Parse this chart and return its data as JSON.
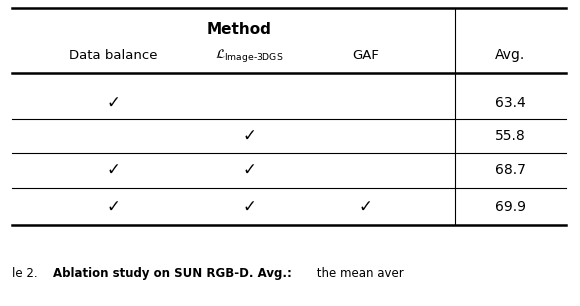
{
  "title": "Method",
  "col_headers": [
    "Data balance",
    "$\\mathcal{L}_{\\mathrm{Image\\text{-}3DGS}}$",
    "GAF",
    "Avg."
  ],
  "rows": [
    [
      true,
      false,
      false,
      "63.4"
    ],
    [
      false,
      true,
      false,
      "55.8"
    ],
    [
      true,
      true,
      false,
      "68.7"
    ],
    [
      true,
      true,
      true,
      "69.9"
    ]
  ],
  "bg_color": "#ffffff",
  "text_color": "#000000",
  "check": "✓",
  "caption_normal1": "le 2.  ",
  "caption_bold": "Ablation study on SUN RGB-D. Avg.:",
  "caption_normal2": " the mean aver"
}
